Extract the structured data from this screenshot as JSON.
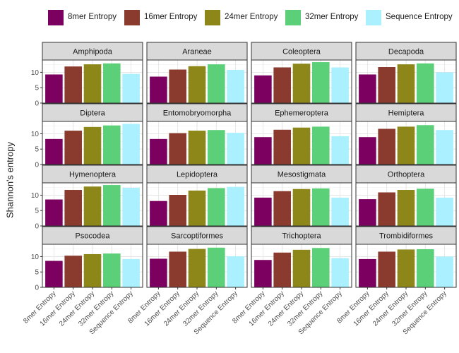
{
  "chart_data": {
    "type": "bar",
    "layout": "faceted grid, 4 rows x 4 columns",
    "ylabel": "Shannon's entropy",
    "xlabel": "",
    "ylim": [
      0,
      14
    ],
    "y_ticks": [
      0,
      5,
      10
    ],
    "grid": true,
    "legend_position": "top",
    "categories": [
      "8mer Entropy",
      "16mer Entropy",
      "24mer Entropy",
      "32mer Entropy",
      "Sequence Entropy"
    ],
    "colors": [
      "#7b005f",
      "#8b3a2e",
      "#8c8718",
      "#5cd079",
      "#aaf0ff"
    ],
    "facets": [
      {
        "name": "Amphipoda",
        "values": [
          9.3,
          11.9,
          12.6,
          12.9,
          9.5
        ]
      },
      {
        "name": "Araneae",
        "values": [
          8.6,
          10.9,
          12.0,
          12.6,
          10.8
        ]
      },
      {
        "name": "Coleoptera",
        "values": [
          9.0,
          11.6,
          12.8,
          13.3,
          11.6
        ]
      },
      {
        "name": "Decapoda",
        "values": [
          9.3,
          11.7,
          12.6,
          12.9,
          10.0
        ]
      },
      {
        "name": "Diptera",
        "values": [
          8.3,
          11.0,
          12.2,
          12.7,
          13.2
        ]
      },
      {
        "name": "Entomobryomorpha",
        "values": [
          8.3,
          10.2,
          11.0,
          11.2,
          10.3
        ]
      },
      {
        "name": "Ephemeroptera",
        "values": [
          8.9,
          11.3,
          12.0,
          12.3,
          9.2
        ]
      },
      {
        "name": "Hemiptera",
        "values": [
          8.9,
          11.6,
          12.3,
          12.8,
          11.2
        ]
      },
      {
        "name": "Hymenoptera",
        "values": [
          8.6,
          11.7,
          12.8,
          13.3,
          12.4
        ]
      },
      {
        "name": "Lepidoptera",
        "values": [
          8.1,
          10.1,
          11.5,
          12.3,
          12.7
        ]
      },
      {
        "name": "Mesostigmata",
        "values": [
          9.2,
          11.3,
          12.0,
          12.2,
          9.2
        ]
      },
      {
        "name": "Orthoptera",
        "values": [
          8.7,
          10.9,
          11.7,
          12.1,
          9.2
        ]
      },
      {
        "name": "Psocodea",
        "values": [
          8.6,
          10.3,
          10.8,
          11.0,
          9.2
        ]
      },
      {
        "name": "Sarcoptiformes",
        "values": [
          9.3,
          11.6,
          12.5,
          12.9,
          10.1
        ]
      },
      {
        "name": "Trichoptera",
        "values": [
          8.9,
          11.3,
          12.2,
          12.8,
          9.5
        ]
      },
      {
        "name": "Trombidiformes",
        "values": [
          9.2,
          11.6,
          12.3,
          12.4,
          10.0
        ]
      }
    ]
  }
}
